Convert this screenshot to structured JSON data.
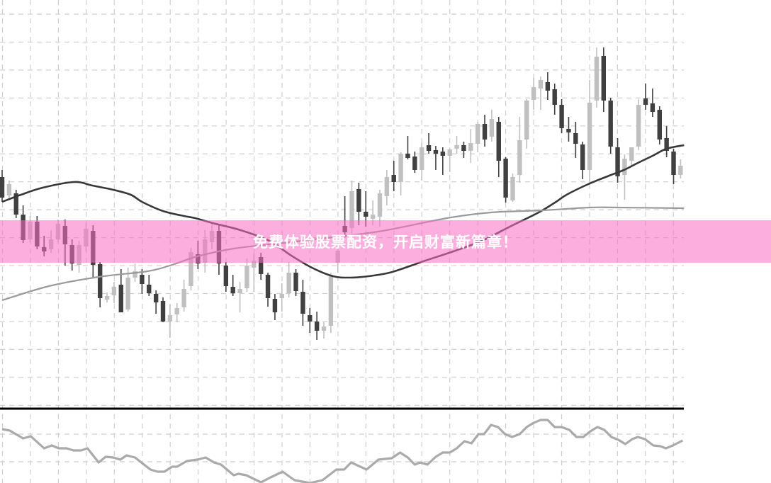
{
  "banner": {
    "text": "免费体验股票配资，开启财富新篇章！"
  },
  "colors": {
    "bear": "#404040",
    "bull": "#c0c0c0",
    "ma_fast": "#383838",
    "ma_slow": "#9a9a9a",
    "oscillator": "#aaaaaa",
    "grid": "#cfcfcf",
    "banner": "#fcafdd"
  },
  "chart_data": [
    {
      "type": "candlestick",
      "title": "",
      "xlabel": "",
      "ylabel": "",
      "grid": true,
      "ylim": [
        23,
        600
      ],
      "candles_ohlc": [
        [
          350,
          360,
          315,
          321
        ],
        [
          324,
          345,
          320,
          340
        ],
        [
          327,
          332,
          292,
          297
        ],
        [
          297,
          310,
          257,
          261
        ],
        [
          262,
          295,
          258,
          287
        ],
        [
          287,
          295,
          248,
          252
        ],
        [
          251,
          267,
          238,
          245
        ],
        [
          248,
          275,
          243,
          262
        ],
        [
          262,
          290,
          258,
          284
        ],
        [
          281,
          290,
          225,
          255
        ],
        [
          254,
          262,
          218,
          228
        ],
        [
          226,
          260,
          215,
          254
        ],
        [
          252,
          285,
          245,
          277
        ],
        [
          274,
          282,
          207,
          226
        ],
        [
          227,
          230,
          166,
          179
        ],
        [
          177,
          187,
          173,
          182
        ],
        [
          183,
          202,
          172,
          195
        ],
        [
          198,
          220,
          159,
          159
        ],
        [
          163,
          222,
          160,
          208
        ],
        [
          208,
          228,
          202,
          217
        ],
        [
          212,
          220,
          185,
          199
        ],
        [
          198,
          212,
          182,
          186
        ],
        [
          185,
          190,
          157,
          173
        ],
        [
          175,
          180,
          145,
          146
        ],
        [
          146,
          170,
          123,
          155
        ],
        [
          156,
          172,
          145,
          165
        ],
        [
          166,
          205,
          160,
          192
        ],
        [
          196,
          250,
          190,
          244
        ],
        [
          241,
          260,
          220,
          228
        ],
        [
          229,
          275,
          215,
          262
        ],
        [
          258,
          285,
          248,
          274
        ],
        [
          274,
          282,
          212,
          228
        ],
        [
          225,
          230,
          188,
          196
        ],
        [
          195,
          212,
          182,
          186
        ],
        [
          186,
          202,
          159,
          192
        ],
        [
          193,
          235,
          188,
          225
        ],
        [
          222,
          242,
          188,
          232
        ],
        [
          237,
          243,
          205,
          213
        ],
        [
          212,
          215,
          167,
          179
        ],
        [
          178,
          185,
          148,
          159
        ],
        [
          179,
          200,
          160,
          185
        ],
        [
          186,
          230,
          180,
          215
        ],
        [
          215,
          220,
          182,
          189
        ],
        [
          188,
          205,
          140,
          157
        ],
        [
          155,
          165,
          130,
          146
        ],
        [
          146,
          160,
          120,
          133
        ],
        [
          133,
          145,
          122,
          139
        ],
        [
          140,
          215,
          130,
          212
        ],
        [
          229,
          260,
          215,
          246
        ],
        [
          281,
          323,
          265,
          272
        ],
        [
          278,
          345,
          270,
          330
        ],
        [
          333,
          342,
          282,
          301
        ],
        [
          301,
          330,
          280,
          294
        ],
        [
          291,
          317,
          282,
          297
        ],
        [
          294,
          332,
          280,
          327
        ],
        [
          323,
          360,
          310,
          350
        ],
        [
          353,
          373,
          330,
          343
        ],
        [
          343,
          385,
          324,
          383
        ],
        [
          383,
          408,
          375,
          377
        ],
        [
          379,
          386,
          356,
          360
        ],
        [
          360,
          398,
          345,
          392
        ],
        [
          395,
          412,
          383,
          387
        ],
        [
          388,
          394,
          360,
          383
        ],
        [
          386,
          392,
          353,
          380
        ],
        [
          380,
          390,
          357,
          389
        ],
        [
          390,
          408,
          383,
          395
        ],
        [
          395,
          400,
          377,
          387
        ],
        [
          387,
          418,
          370,
          398
        ],
        [
          397,
          428,
          385,
          425
        ],
        [
          425,
          438,
          393,
          403
        ],
        [
          407,
          445,
          400,
          432
        ],
        [
          428,
          435,
          350,
          373
        ],
        [
          376,
          378,
          314,
          321
        ],
        [
          317,
          355,
          315,
          350
        ],
        [
          353,
          435,
          342,
          402
        ],
        [
          403,
          460,
          390,
          458
        ],
        [
          459,
          490,
          445,
          477
        ],
        [
          475,
          492,
          445,
          487
        ],
        [
          484,
          498,
          459,
          472
        ],
        [
          474,
          482,
          438,
          452
        ],
        [
          452,
          460,
          412,
          419
        ],
        [
          418,
          435,
          400,
          413
        ],
        [
          412,
          428,
          377,
          397
        ],
        [
          396,
          400,
          347,
          360
        ],
        [
          360,
          487,
          342,
          455
        ],
        [
          458,
          533,
          448,
          520
        ],
        [
          521,
          533,
          442,
          458
        ],
        [
          458,
          462,
          383,
          393
        ],
        [
          392,
          405,
          342,
          351
        ],
        [
          353,
          382,
          318,
          376
        ],
        [
          373,
          392,
          365,
          392
        ],
        [
          393,
          460,
          388,
          452
        ],
        [
          461,
          482,
          445,
          452
        ],
        [
          454,
          475,
          435,
          442
        ],
        [
          445,
          450,
          396,
          403
        ],
        [
          405,
          422,
          378,
          387
        ],
        [
          386,
          390,
          340,
          353
        ],
        [
          353,
          375,
          348,
          366
        ]
      ],
      "moving_averages": [
        {
          "line": "fast",
          "points": [
            [
              0,
              315
            ],
            [
              2.7,
              325
            ],
            [
              5.8,
              335
            ],
            [
              10.3,
              343
            ],
            [
              12.9,
              338
            ],
            [
              15.9,
              332
            ],
            [
              18.4,
              325
            ],
            [
              20,
              315
            ],
            [
              23,
              302
            ],
            [
              26,
              295
            ],
            [
              27.6,
              292
            ],
            [
              30.1,
              285
            ],
            [
              34.1,
              275
            ],
            [
              38.2,
              260
            ],
            [
              41.2,
              240
            ],
            [
              44.3,
              222
            ],
            [
              47.3,
              210
            ],
            [
              49.8,
              208
            ],
            [
              52.4,
              210
            ],
            [
              55.4,
              215
            ],
            [
              58.5,
              225
            ],
            [
              60.5,
              232
            ],
            [
              64.5,
              245
            ],
            [
              68.6,
              260
            ],
            [
              72.6,
              280
            ],
            [
              76.7,
              300
            ],
            [
              79.2,
              315
            ],
            [
              80.7,
              325
            ],
            [
              83.8,
              340
            ],
            [
              86.8,
              352
            ],
            [
              88.9,
              360
            ],
            [
              90.9,
              370
            ],
            [
              93,
              380
            ],
            [
              95,
              390
            ],
            [
              97.5,
              395
            ]
          ]
        },
        {
          "line": "slow",
          "points": [
            [
              0,
              176
            ],
            [
              6.7,
              196
            ],
            [
              13.8,
              209
            ],
            [
              20.8,
              217
            ],
            [
              24.3,
              226
            ],
            [
              27.9,
              238
            ],
            [
              33.1,
              249
            ],
            [
              40.2,
              257
            ],
            [
              47.3,
              265
            ],
            [
              54.4,
              274
            ],
            [
              63.6,
              292
            ],
            [
              69.9,
              300
            ],
            [
              77.3,
              303
            ],
            [
              84,
              307
            ],
            [
              87.8,
              307
            ],
            [
              97.5,
              306
            ]
          ]
        }
      ]
    },
    {
      "type": "line",
      "title": "",
      "xlabel": "",
      "ylabel": "",
      "grid": true,
      "series": [
        {
          "points": [
            [
              0,
              94
            ],
            [
              1.1,
              92
            ],
            [
              3,
              81
            ],
            [
              4.1,
              84
            ],
            [
              6,
              67
            ],
            [
              7.1,
              71
            ],
            [
              8.1,
              67
            ],
            [
              9.2,
              67
            ],
            [
              10.2,
              64
            ],
            [
              11.3,
              64
            ],
            [
              12.2,
              67
            ],
            [
              13.8,
              47
            ],
            [
              14.8,
              55
            ],
            [
              15.9,
              54
            ],
            [
              16.9,
              51
            ],
            [
              17.8,
              57
            ],
            [
              19,
              54
            ],
            [
              21.2,
              37
            ],
            [
              22.2,
              34
            ],
            [
              23.2,
              34
            ],
            [
              24.3,
              41
            ],
            [
              25,
              41
            ],
            [
              26.4,
              49
            ],
            [
              27.9,
              51
            ],
            [
              29.1,
              54
            ],
            [
              30.3,
              47
            ],
            [
              31.3,
              44
            ],
            [
              33.1,
              29
            ],
            [
              33.8,
              31
            ],
            [
              34.9,
              29
            ],
            [
              37,
              19
            ],
            [
              38.4,
              26
            ],
            [
              40.1,
              34
            ],
            [
              41.8,
              22
            ],
            [
              44,
              18
            ],
            [
              45.8,
              22
            ],
            [
              47.8,
              37
            ],
            [
              48.9,
              37
            ],
            [
              49.9,
              47
            ],
            [
              52.1,
              37
            ],
            [
              53.8,
              51
            ],
            [
              55.7,
              53
            ],
            [
              56.9,
              61
            ],
            [
              58,
              54
            ],
            [
              59,
              44
            ],
            [
              59.8,
              47
            ],
            [
              60.8,
              44
            ],
            [
              62,
              55
            ],
            [
              63,
              61
            ],
            [
              64,
              61
            ],
            [
              65,
              67
            ],
            [
              66.1,
              77
            ],
            [
              67.1,
              74
            ],
            [
              68.1,
              87
            ],
            [
              68.9,
              87
            ],
            [
              69.9,
              100
            ],
            [
              70.9,
              97
            ],
            [
              71.9,
              87
            ],
            [
              72.9,
              83
            ],
            [
              74,
              87
            ],
            [
              75,
              97
            ],
            [
              76,
              103
            ],
            [
              77,
              107
            ],
            [
              78,
              107
            ],
            [
              79,
              97
            ],
            [
              80,
              97
            ],
            [
              81.1,
              93
            ],
            [
              82.1,
              83
            ],
            [
              83.1,
              83
            ],
            [
              84.1,
              91
            ],
            [
              85.1,
              97
            ],
            [
              86.1,
              93
            ],
            [
              87.1,
              83
            ],
            [
              88.1,
              79
            ],
            [
              89.1,
              73
            ],
            [
              90.1,
              80
            ],
            [
              90.9,
              83
            ],
            [
              91.9,
              80
            ],
            [
              93.1,
              71
            ],
            [
              94.1,
              70
            ],
            [
              94.9,
              67
            ],
            [
              95.9,
              71
            ],
            [
              97.3,
              78
            ]
          ]
        }
      ]
    }
  ]
}
